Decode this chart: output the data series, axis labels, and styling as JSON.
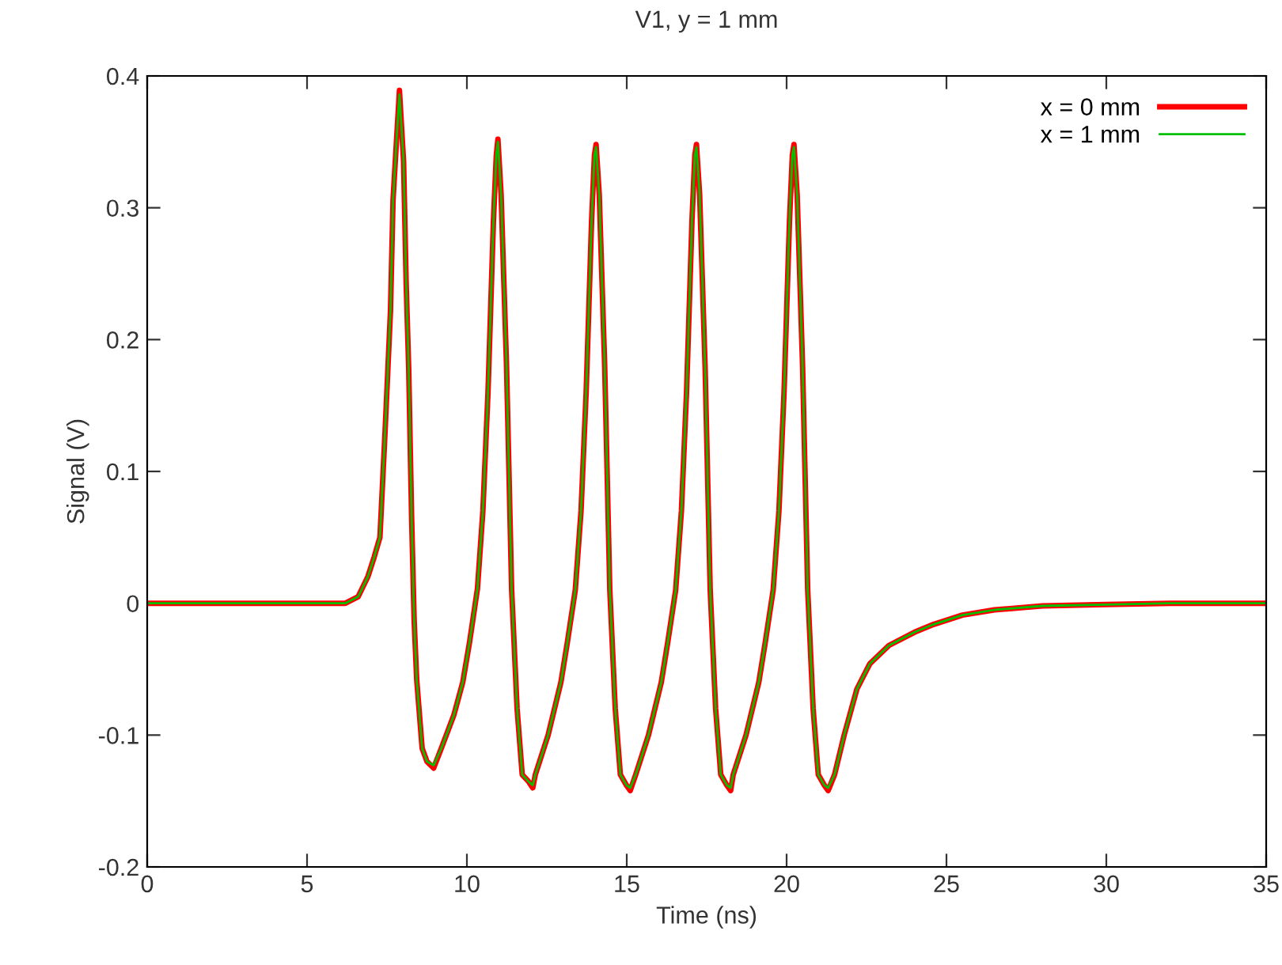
{
  "chart_data": {
    "type": "line",
    "title": "V1, y = 1 mm",
    "xlabel": "Time (ns)",
    "ylabel": "Signal (V)",
    "x": [
      0,
      6.2,
      6.6,
      6.9,
      7.1,
      7.28,
      7.44,
      7.61,
      7.69,
      7.82,
      7.89,
      8.02,
      8.1,
      8.18,
      8.27,
      8.35,
      8.43,
      8.6,
      8.75,
      8.96,
      9.2,
      9.59,
      9.87,
      10.08,
      10.33,
      10.5,
      10.66,
      10.83,
      10.92,
      10.97,
      11.07,
      11.24,
      11.4,
      11.57,
      11.73,
      11.92,
      12.06,
      12.14,
      12.54,
      12.94,
      13.14,
      13.39,
      13.57,
      13.73,
      13.9,
      13.99,
      14.04,
      14.14,
      14.31,
      14.47,
      14.64,
      14.8,
      14.99,
      15.11,
      15.28,
      15.68,
      16.08,
      16.28,
      16.53,
      16.71,
      16.87,
      17.04,
      17.13,
      17.18,
      17.28,
      17.45,
      17.61,
      17.78,
      17.94,
      18.13,
      18.25,
      18.33,
      18.73,
      19.13,
      19.33,
      19.58,
      19.76,
      19.92,
      20.09,
      20.18,
      20.23,
      20.33,
      20.5,
      20.66,
      20.83,
      20.99,
      21.18,
      21.3,
      21.5,
      21.8,
      22.2,
      22.6,
      23.2,
      24.0,
      24.6,
      25.5,
      26.5,
      28,
      30,
      32,
      35
    ],
    "series": [
      {
        "name": "x = 0 mm",
        "color": "#ff0000",
        "values": [
          0,
          0,
          0.005,
          0.02,
          0.035,
          0.05,
          0.13,
          0.222,
          0.306,
          0.36,
          0.389,
          0.335,
          0.243,
          0.178,
          0.066,
          -0.013,
          -0.058,
          -0.11,
          -0.12,
          -0.125,
          -0.11,
          -0.085,
          -0.06,
          -0.03,
          0.011,
          0.07,
          0.16,
          0.29,
          0.34,
          0.352,
          0.31,
          0.18,
          0.01,
          -0.08,
          -0.13,
          -0.135,
          -0.14,
          -0.13,
          -0.1,
          -0.06,
          -0.03,
          0.01,
          0.07,
          0.16,
          0.29,
          0.34,
          0.348,
          0.31,
          0.18,
          0.01,
          -0.08,
          -0.13,
          -0.138,
          -0.142,
          -0.13,
          -0.1,
          -0.06,
          -0.03,
          0.01,
          0.07,
          0.16,
          0.29,
          0.34,
          0.348,
          0.31,
          0.18,
          0.01,
          -0.08,
          -0.13,
          -0.138,
          -0.142,
          -0.13,
          -0.1,
          -0.06,
          -0.03,
          0.01,
          0.07,
          0.16,
          0.29,
          0.34,
          0.348,
          0.31,
          0.18,
          0.01,
          -0.08,
          -0.13,
          -0.138,
          -0.142,
          -0.13,
          -0.1,
          -0.065,
          -0.046,
          -0.032,
          -0.022,
          -0.016,
          -0.009,
          -0.005,
          -0.002,
          -0.001,
          0,
          0
        ]
      },
      {
        "name": "x = 1 mm",
        "color": "#00c000",
        "values": [
          0,
          0,
          0.005,
          0.02,
          0.035,
          0.05,
          0.13,
          0.222,
          0.306,
          0.36,
          0.386,
          0.335,
          0.243,
          0.178,
          0.066,
          -0.013,
          -0.058,
          -0.11,
          -0.12,
          -0.123,
          -0.11,
          -0.085,
          -0.06,
          -0.03,
          0.011,
          0.07,
          0.16,
          0.29,
          0.34,
          0.35,
          0.31,
          0.18,
          0.01,
          -0.08,
          -0.13,
          -0.135,
          -0.138,
          -0.13,
          -0.1,
          -0.06,
          -0.03,
          0.01,
          0.07,
          0.16,
          0.29,
          0.34,
          0.346,
          0.31,
          0.18,
          0.01,
          -0.08,
          -0.13,
          -0.138,
          -0.14,
          -0.13,
          -0.1,
          -0.06,
          -0.03,
          0.01,
          0.07,
          0.16,
          0.29,
          0.34,
          0.346,
          0.31,
          0.18,
          0.01,
          -0.08,
          -0.13,
          -0.138,
          -0.14,
          -0.13,
          -0.1,
          -0.06,
          -0.03,
          0.01,
          0.07,
          0.16,
          0.29,
          0.34,
          0.346,
          0.31,
          0.18,
          0.01,
          -0.08,
          -0.13,
          -0.138,
          -0.14,
          -0.13,
          -0.1,
          -0.065,
          -0.046,
          -0.032,
          -0.022,
          -0.016,
          -0.009,
          -0.005,
          -0.002,
          -0.001,
          0,
          0
        ]
      }
    ],
    "xlim": [
      0,
      35
    ],
    "xticks": [
      0,
      5,
      10,
      15,
      20,
      25,
      30,
      35
    ],
    "ylim": [
      -0.2,
      0.4
    ],
    "yticks": [
      -0.2,
      -0.1,
      0,
      0.1,
      0.2,
      0.3,
      0.4
    ],
    "legend": "top right",
    "grid": false,
    "marker": "none",
    "line_style": "solid"
  }
}
